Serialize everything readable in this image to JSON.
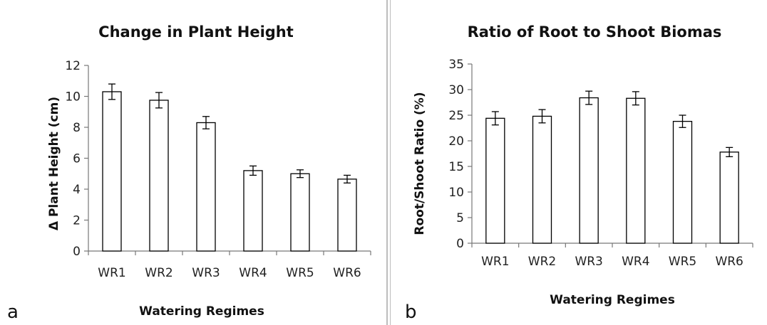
{
  "chart_data": [
    {
      "panel_label": "a",
      "type": "bar",
      "title": "Change in Plant Height",
      "xlabel": "Watering Regimes",
      "ylabel": "Δ Plant Height (cm)",
      "categories": [
        "WR1",
        "WR2",
        "WR3",
        "WR4",
        "WR5",
        "WR6"
      ],
      "values": [
        10.3,
        9.75,
        8.3,
        5.2,
        5.0,
        4.65
      ],
      "errors": [
        0.5,
        0.5,
        0.4,
        0.3,
        0.25,
        0.25
      ],
      "ylim": [
        0,
        12
      ],
      "yticks": [
        0,
        2,
        4,
        6,
        8,
        10,
        12
      ],
      "grid": false,
      "bar_fill": "#ffffff",
      "bar_stroke": "#000000"
    },
    {
      "panel_label": "b",
      "type": "bar",
      "title": "Ratio of Root to Shoot Biomas",
      "xlabel": "Watering Regimes",
      "ylabel": "Root/Shoot Ratio (%)",
      "categories": [
        "WR1",
        "WR2",
        "WR3",
        "WR4",
        "WR5",
        "WR6"
      ],
      "values": [
        24.4,
        24.8,
        28.4,
        28.3,
        23.8,
        17.8
      ],
      "errors": [
        1.3,
        1.3,
        1.3,
        1.3,
        1.2,
        0.9
      ],
      "ylim": [
        0,
        35
      ],
      "yticks": [
        0,
        5,
        10,
        15,
        20,
        25,
        30,
        35
      ],
      "grid": false,
      "bar_fill": "#ffffff",
      "bar_stroke": "#000000"
    }
  ]
}
